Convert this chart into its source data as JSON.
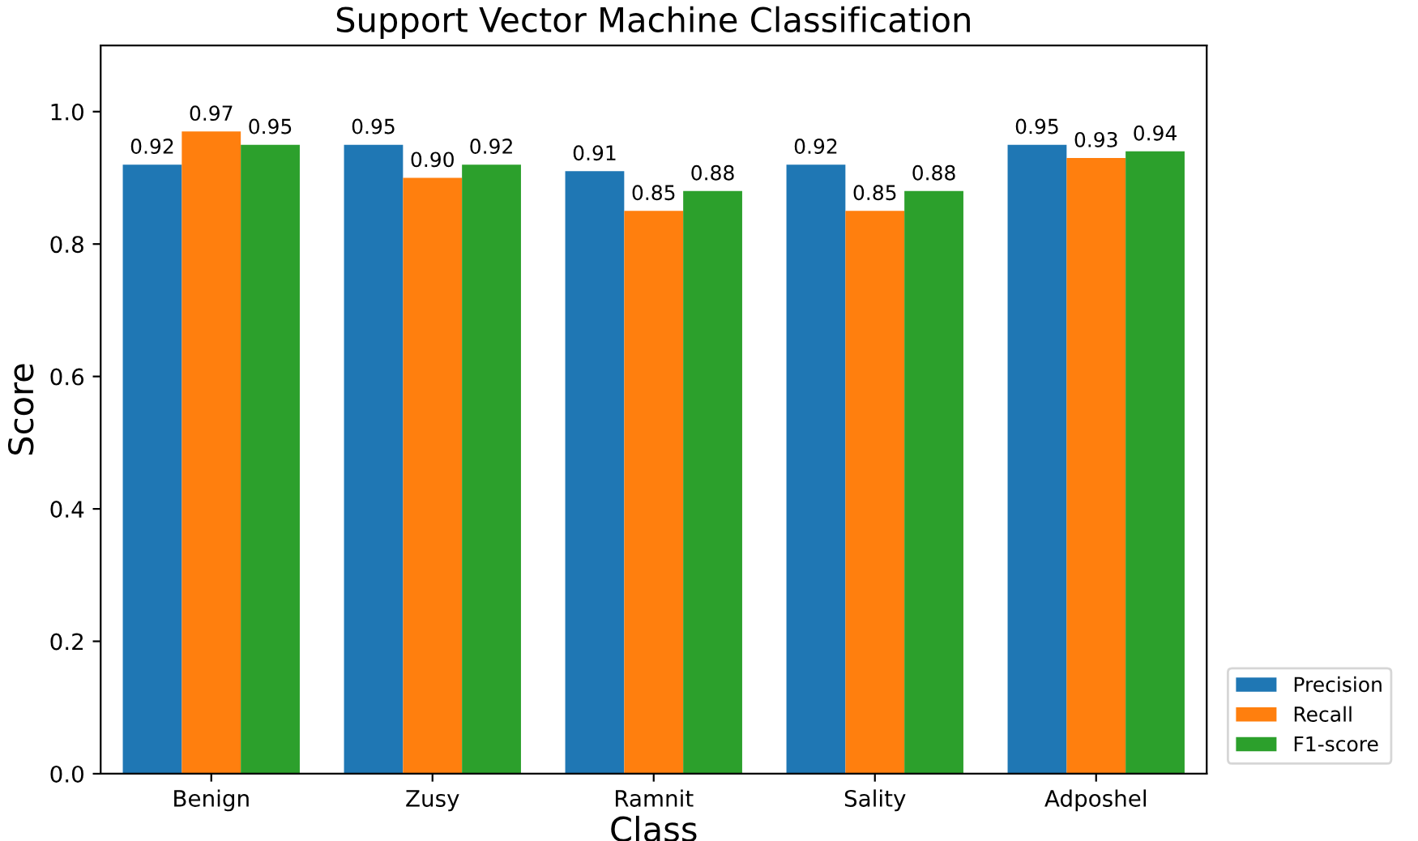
{
  "chart_data": {
    "type": "bar",
    "title": "Support Vector Machine Classification",
    "xlabel": "Class",
    "ylabel": "Score",
    "categories": [
      "Benign",
      "Zusy",
      "Ramnit",
      "Sality",
      "Adposhel"
    ],
    "series": [
      {
        "name": "Precision",
        "color": "#1f77b4",
        "values": [
          0.92,
          0.95,
          0.91,
          0.92,
          0.95
        ],
        "value_labels": [
          "0.92",
          "0.95",
          "0.91",
          "0.92",
          "0.95"
        ]
      },
      {
        "name": "Recall",
        "color": "#ff7f0e",
        "values": [
          0.97,
          0.9,
          0.85,
          0.85,
          0.93
        ],
        "value_labels": [
          "0.97",
          "0.90",
          "0.85",
          "0.85",
          "0.93"
        ]
      },
      {
        "name": "F1-score",
        "color": "#2ca02c",
        "values": [
          0.95,
          0.92,
          0.88,
          0.88,
          0.94
        ],
        "value_labels": [
          "0.95",
          "0.92",
          "0.88",
          "0.88",
          "0.94"
        ]
      }
    ],
    "ylim": [
      0,
      1.1
    ],
    "yticks": [
      {
        "value": 0,
        "label": "0.0"
      },
      0.2,
      0.4,
      0.6,
      0.8,
      {
        "value": 1,
        "label": "1.0"
      }
    ],
    "grid": false,
    "legend": "bottom right"
  }
}
